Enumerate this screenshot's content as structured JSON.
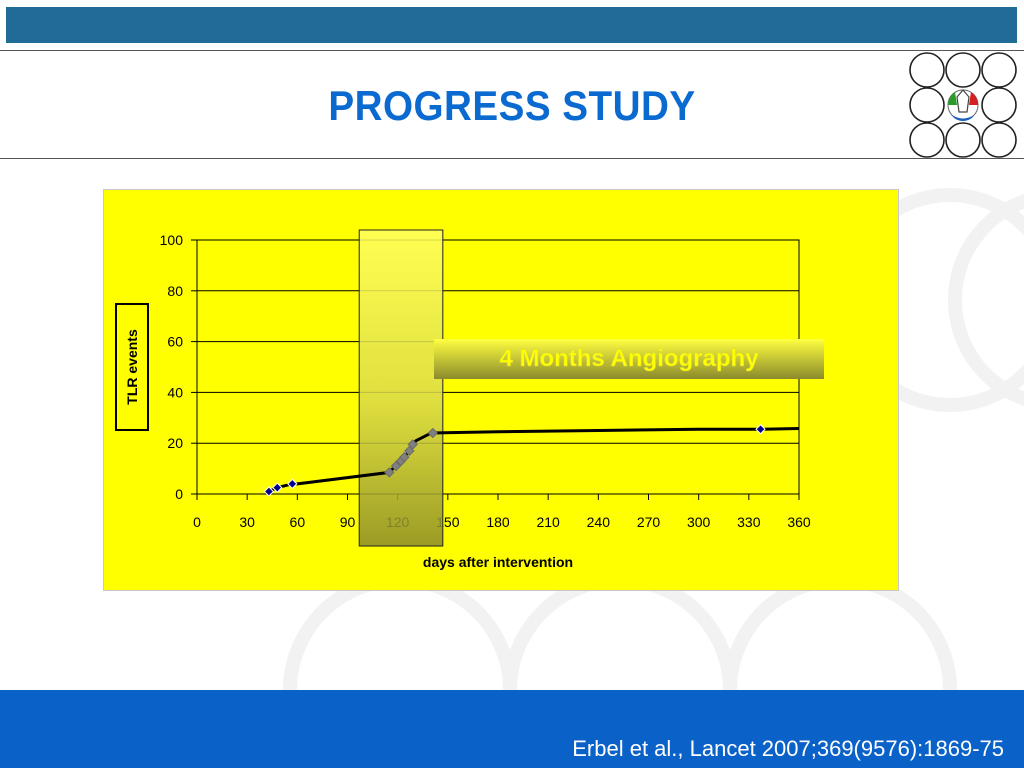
{
  "slide": {
    "title": "PROGRESS STUDY",
    "citation": "Erbel et al., Lancet 2007;369(9576):1869-75"
  },
  "colors": {
    "title": "#0b6ad0",
    "top_bar": "#206b97",
    "footer": "#0a62c9",
    "chart_background": "#ffff00",
    "line": "#000000",
    "marker": "#00008b",
    "highlighted_marker": "#808080"
  },
  "logo": {
    "icon": "circles-grid-logo-icon"
  },
  "chart_data": {
    "type": "line",
    "xlabel": "days after intervention",
    "ylabel": "TLR  events",
    "xlim": [
      0,
      360
    ],
    "ylim": [
      0,
      100
    ],
    "xticks": [
      0,
      30,
      60,
      90,
      120,
      150,
      180,
      210,
      240,
      270,
      300,
      330,
      360
    ],
    "yticks": [
      0,
      20,
      40,
      60,
      80,
      100
    ],
    "grid": "horizontal",
    "annotation": "4 Months Angiography",
    "highlight_range": [
      97,
      147
    ],
    "series": [
      {
        "x": [
          43,
          48,
          57,
          60,
          115,
          120,
          124,
          127,
          129,
          131,
          140,
          180,
          240,
          300,
          337,
          360
        ],
        "y": [
          1,
          2.5,
          4,
          4,
          8.5,
          12,
          14.5,
          17,
          19.5,
          21,
          24,
          24.5,
          25,
          25.5,
          25.5,
          25.8
        ],
        "markers": [
          {
            "x": 43,
            "y": 1,
            "style": "diamond"
          },
          {
            "x": 48,
            "y": 2.5,
            "style": "diamond"
          },
          {
            "x": 57,
            "y": 4,
            "style": "diamond"
          },
          {
            "x": 115,
            "y": 8.5,
            "style": "highlighted"
          },
          {
            "x": 119,
            "y": 11,
            "style": "highlighted"
          },
          {
            "x": 122,
            "y": 13,
            "style": "highlighted"
          },
          {
            "x": 124,
            "y": 14.5,
            "style": "highlighted"
          },
          {
            "x": 127,
            "y": 17,
            "style": "highlighted"
          },
          {
            "x": 129,
            "y": 19.5,
            "style": "highlighted"
          },
          {
            "x": 141,
            "y": 24,
            "style": "highlighted"
          },
          {
            "x": 337,
            "y": 25.5,
            "style": "diamond"
          }
        ]
      }
    ]
  }
}
